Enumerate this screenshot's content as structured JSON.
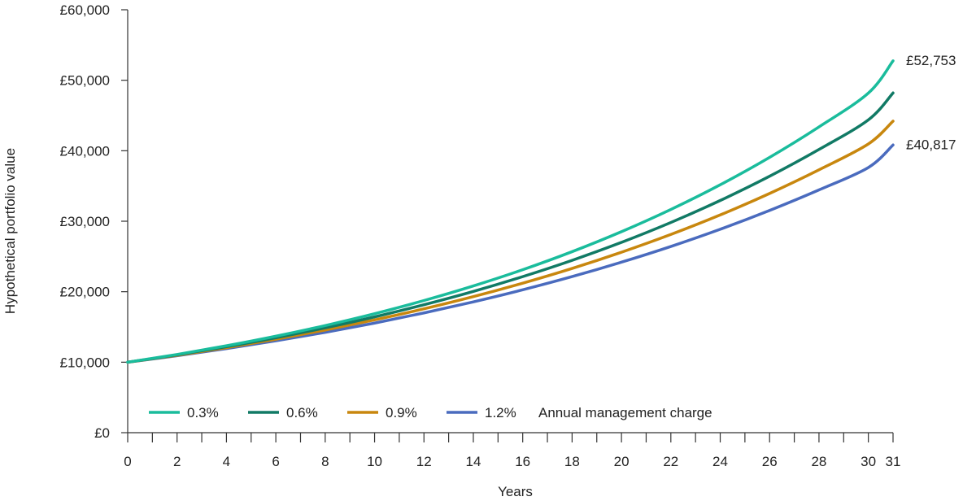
{
  "chart_data": {
    "type": "line",
    "xlabel": "Years",
    "ylabel": "Hypothetical portfolio value",
    "xlim": [
      0,
      31
    ],
    "ylim": [
      0,
      60000
    ],
    "x_ticks": [
      0,
      2,
      4,
      6,
      8,
      10,
      12,
      14,
      16,
      18,
      20,
      22,
      24,
      26,
      28,
      30,
      31
    ],
    "x_minor_ticks": [
      1,
      3,
      5,
      7,
      9,
      11,
      13,
      15,
      17,
      19,
      21,
      23,
      25,
      27,
      29
    ],
    "y_ticks": [
      0,
      10000,
      20000,
      30000,
      40000,
      50000,
      60000
    ],
    "y_tick_labels": [
      "£0",
      "£10,000",
      "£20,000",
      "£30,000",
      "£40,000",
      "£50,000",
      "£60,000"
    ],
    "grid": false,
    "legend_position": "bottom-left, inside plot",
    "legend_suffix": "Annual management charge",
    "x": [
      0,
      2,
      4,
      6,
      8,
      10,
      12,
      14,
      16,
      18,
      20,
      22,
      24,
      26,
      28,
      30,
      31
    ],
    "series": [
      {
        "name": "0.3%",
        "color": "#1ABC9C",
        "values": [
          10000,
          11100,
          12330,
          13690,
          15200,
          16880,
          18750,
          20820,
          23120,
          25680,
          28520,
          31670,
          35170,
          39060,
          43380,
          48180,
          52753
        ]
      },
      {
        "name": "0.6%",
        "color": "#117A65",
        "values": [
          10000,
          11040,
          12200,
          13470,
          14880,
          16430,
          18150,
          20040,
          22140,
          24450,
          27000,
          29820,
          32940,
          36380,
          40180,
          44380,
          48200
        ]
      },
      {
        "name": "0.9%",
        "color": "#C8870E",
        "values": [
          10000,
          10980,
          12060,
          13250,
          14560,
          16000,
          17570,
          19300,
          21210,
          23300,
          25600,
          28120,
          30890,
          33940,
          37290,
          40960,
          44200
        ]
      },
      {
        "name": "1.2%",
        "color": "#4A6BBE",
        "values": [
          10000,
          10920,
          11930,
          13030,
          14240,
          15550,
          16990,
          18560,
          20270,
          22140,
          24190,
          26420,
          28860,
          31530,
          34440,
          37620,
          40817
        ]
      }
    ],
    "annotations": [
      {
        "series": "0.3%",
        "x": 31,
        "text": "£52,753"
      },
      {
        "series": "1.2%",
        "x": 31,
        "text": "£40,817"
      }
    ]
  }
}
